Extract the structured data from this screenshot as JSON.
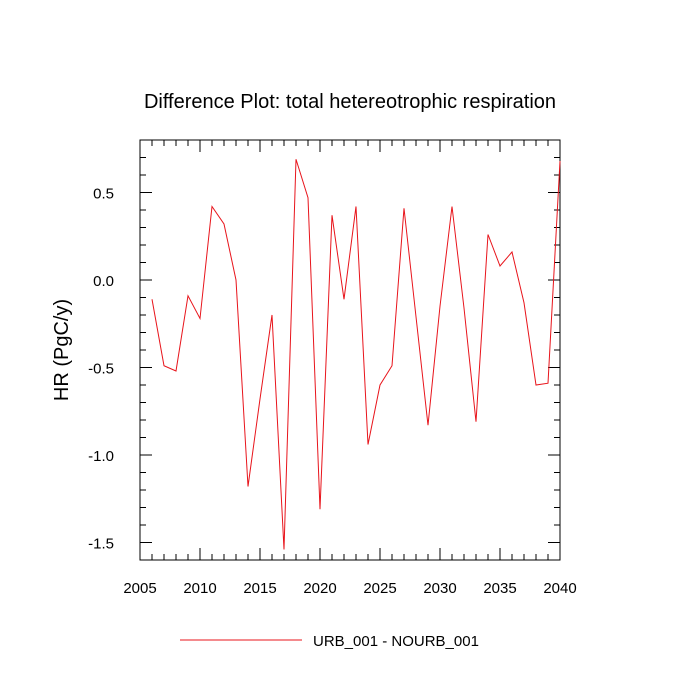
{
  "chart_data": {
    "type": "line",
    "title": "Difference Plot: total hetereotrophic respiration",
    "xlabel": "",
    "ylabel": "HR  (PgC/y)",
    "xlim": [
      2005,
      2040
    ],
    "ylim": [
      -1.6,
      0.8
    ],
    "xticks": [
      2005,
      2010,
      2015,
      2020,
      2025,
      2030,
      2035,
      2040
    ],
    "xtick_labels": [
      "2005",
      "2010",
      "2015",
      "2020",
      "2025",
      "2030",
      "2035",
      "2040"
    ],
    "yticks": [
      -1.5,
      -1.0,
      -0.5,
      0.0,
      0.5
    ],
    "ytick_labels": [
      "-1.5",
      "-1.0",
      "-0.5",
      "0.0",
      "0.5"
    ],
    "grid": false,
    "legend_position": "bottom",
    "series": [
      {
        "name": "URB_001 - NOURB_001",
        "color": "#e8141b",
        "x": [
          2006,
          2007,
          2008,
          2009,
          2010,
          2011,
          2012,
          2013,
          2014,
          2015,
          2016,
          2017,
          2018,
          2019,
          2020,
          2021,
          2022,
          2023,
          2024,
          2025,
          2026,
          2027,
          2028,
          2029,
          2030,
          2031,
          2032,
          2033,
          2034,
          2035,
          2036,
          2037,
          2038,
          2039,
          2040
        ],
        "y": [
          -0.11,
          -0.49,
          -0.52,
          -0.09,
          -0.22,
          0.42,
          0.32,
          0.0,
          -1.18,
          -0.68,
          -0.2,
          -1.54,
          0.69,
          0.47,
          -1.31,
          0.37,
          -0.11,
          0.42,
          -0.94,
          -0.6,
          -0.49,
          0.41,
          -0.21,
          -0.83,
          -0.15,
          0.42,
          -0.16,
          -0.81,
          0.26,
          0.08,
          0.16,
          -0.13,
          -0.6,
          -0.59,
          0.68
        ]
      }
    ]
  }
}
